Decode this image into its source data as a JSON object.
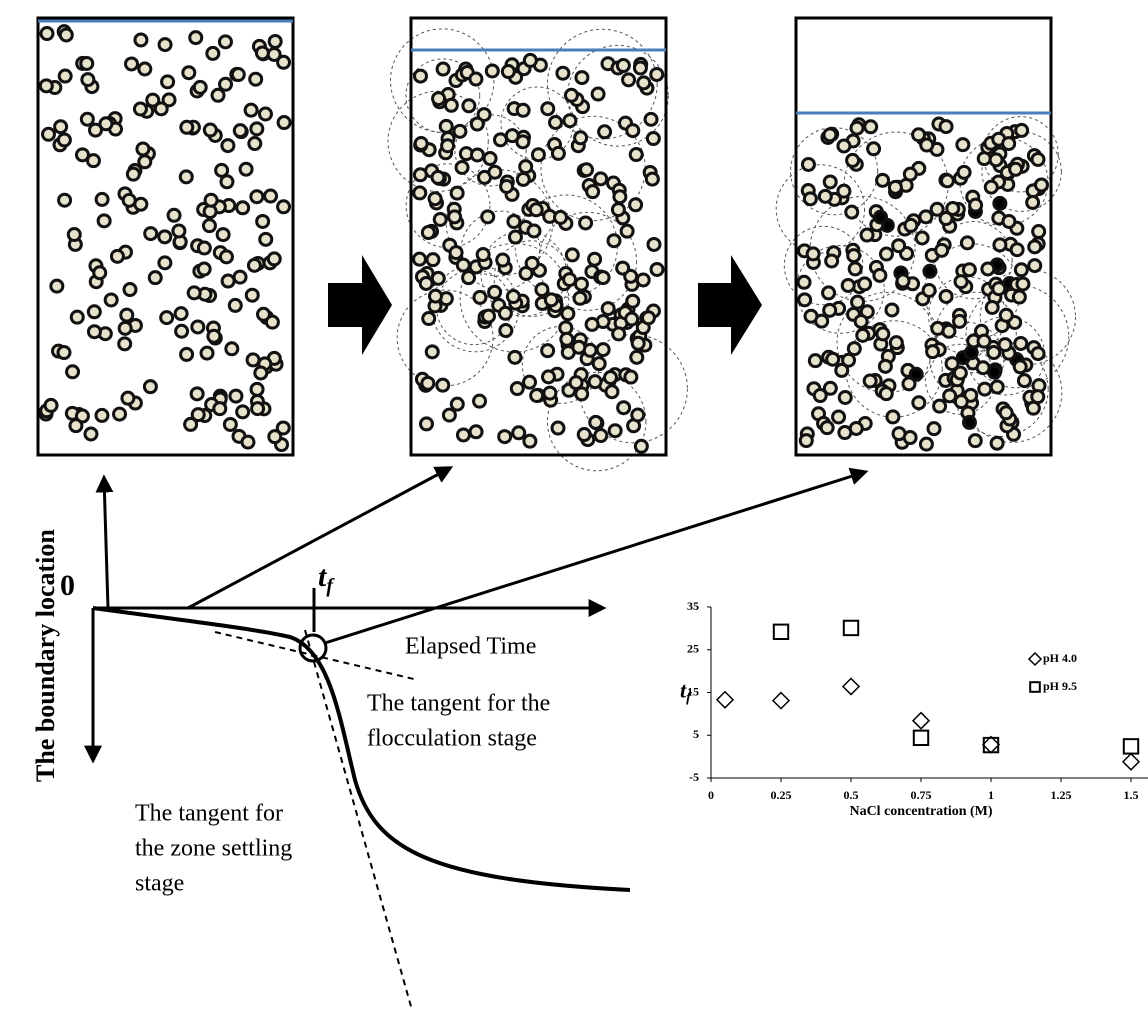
{
  "diagram": {
    "origin_label": "0",
    "tf_label": {
      "main": "t",
      "sub": "f"
    },
    "x_axis_label": "Elapsed Time",
    "y_axis_label": "The boundary location",
    "flocculation_tangent": [
      "The tangent for the",
      "flocculation stage"
    ],
    "zone_tangent": [
      "The tangent for",
      "the zone settling",
      "stage"
    ]
  },
  "chart_data": {
    "type": "scatter",
    "xlabel": "NaCl concentration (M)",
    "ylabel": {
      "main": "t",
      "sub": "f"
    },
    "xlim": [
      0,
      1.5
    ],
    "xticks": [
      0,
      0.25,
      0.5,
      0.75,
      1,
      1.25,
      1.5
    ],
    "ylim": [
      -5,
      35
    ],
    "yticks": [
      -5,
      5,
      15,
      25,
      35
    ],
    "grid": false,
    "legend": "upper right",
    "series": [
      {
        "name": "pH 4.0",
        "marker": "diamond",
        "color": "#000000",
        "x": [
          0.05,
          0.25,
          0.5,
          0.75,
          1,
          1.5
        ],
        "values": [
          13.3,
          13.1,
          16.4,
          8.4,
          2.8,
          -1.2
        ]
      },
      {
        "name": "pH 9.5",
        "marker": "square",
        "color": "#000000",
        "x": [
          0.25,
          0.5,
          0.75,
          1,
          1.5
        ],
        "values": [
          29.2,
          30.1,
          4.4,
          2.7,
          2.4
        ]
      }
    ]
  }
}
